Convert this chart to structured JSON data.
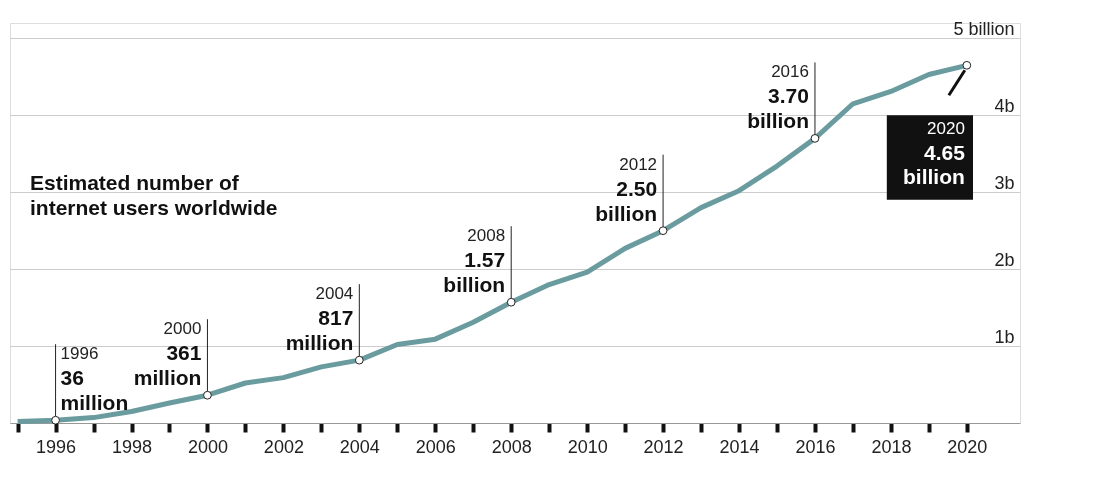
{
  "chart_data": {
    "type": "line",
    "title": "Estimated number of\ninternet users worldwide",
    "x": [
      1995,
      1996,
      1997,
      1998,
      1999,
      2000,
      2001,
      2002,
      2003,
      2004,
      2005,
      2006,
      2007,
      2008,
      2009,
      2010,
      2011,
      2012,
      2013,
      2014,
      2015,
      2016,
      2017,
      2018,
      2019,
      2020
    ],
    "series": [
      {
        "color": "#6a9c9f",
        "values": [
          0.02,
          0.036,
          0.07,
          0.15,
          0.26,
          0.361,
          0.52,
          0.59,
          0.73,
          0.817,
          1.02,
          1.09,
          1.31,
          1.57,
          1.8,
          1.96,
          2.27,
          2.5,
          2.8,
          3.02,
          3.34,
          3.7,
          4.15,
          4.31,
          4.53,
          4.65
        ]
      }
    ],
    "xlim": [
      1994.8,
      2021.4
    ],
    "xticks": [
      {
        "value": 1995,
        "label": null
      },
      1996,
      {
        "value": 1997,
        "label": null
      },
      1998,
      {
        "value": 1999,
        "label": null
      },
      2000,
      {
        "value": 2001,
        "label": null
      },
      2002,
      {
        "value": 2003,
        "label": null
      },
      2004,
      {
        "value": 2005,
        "label": null
      },
      2006,
      {
        "value": 2007,
        "label": null
      },
      2008,
      {
        "value": 2009,
        "label": null
      },
      2010,
      {
        "value": 2011,
        "label": null
      },
      2012,
      {
        "value": 2013,
        "label": null
      },
      2014,
      {
        "value": 2015,
        "label": null
      },
      2016,
      {
        "value": 2017,
        "label": null
      },
      2018,
      {
        "value": 2019,
        "label": null
      },
      2020
    ],
    "ylim": [
      0,
      5.2
    ],
    "yticks": [
      {
        "value": 1,
        "label": "1b"
      },
      {
        "value": 2,
        "label": "2b"
      },
      {
        "value": 3,
        "label": "3b"
      },
      {
        "value": 4,
        "label": "4b"
      },
      {
        "value": 5,
        "label": "5 billion"
      }
    ],
    "grid": "y",
    "annotations": [
      {
        "text": "1996\n36\nmillion",
        "x": 1996,
        "y": 0.036
      },
      {
        "text": "2000\n361\nmillion",
        "x": 2000,
        "y": 0.361
      },
      {
        "text": "2004\n817\nmillion",
        "x": 2004,
        "y": 0.817
      },
      {
        "text": "2008\n1.57\nbillion",
        "x": 2008,
        "y": 1.57
      },
      {
        "text": "2012\n2.50\nbillion",
        "x": 2012,
        "y": 2.5
      },
      {
        "text": "2016\n3.70\nbillion",
        "x": 2016,
        "y": 3.7
      },
      {
        "text": "2020\n4.65\nbillion",
        "x": 2020,
        "y": 4.65
      }
    ]
  }
}
